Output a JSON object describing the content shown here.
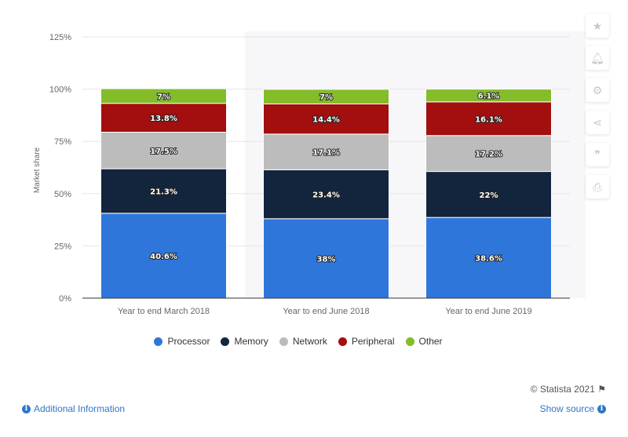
{
  "chart_data": {
    "type": "bar",
    "stacked": true,
    "categories": [
      "Year to end March 2018",
      "Year to end June 2018",
      "Year to end June 2019"
    ],
    "series": [
      {
        "name": "Processor",
        "color": "#2f76db",
        "values": [
          40.6,
          38,
          38.6
        ],
        "labels": [
          "40.6%",
          "38%",
          "38.6%"
        ]
      },
      {
        "name": "Memory",
        "color": "#13253c",
        "values": [
          21.3,
          23.4,
          22
        ],
        "labels": [
          "21.3%",
          "23.4%",
          "22%"
        ]
      },
      {
        "name": "Network",
        "color": "#bcbcbc",
        "values": [
          17.5,
          17.1,
          17.2
        ],
        "labels": [
          "17.5%",
          "17.1%",
          "17.2%"
        ]
      },
      {
        "name": "Peripheral",
        "color": "#a30e0e",
        "values": [
          13.8,
          14.4,
          16.1
        ],
        "labels": [
          "13.8%",
          "14.4%",
          "16.1%"
        ]
      },
      {
        "name": "Other",
        "color": "#84bc2a",
        "values": [
          7,
          7,
          6.1
        ],
        "labels": [
          "7%",
          "7%",
          "6.1%"
        ]
      }
    ],
    "yticks": [
      "0%",
      "25%",
      "50%",
      "75%",
      "100%",
      "125%"
    ],
    "ylim": [
      0,
      125
    ],
    "ylabel": "Market share",
    "xlabel": "",
    "grid": true,
    "legend": "bottom-center"
  },
  "credit": "© Statista 2021",
  "footer": {
    "additional_info": "Additional Information",
    "show_source": "Show source"
  },
  "sidebar_icons": [
    "star-icon",
    "bell-icon",
    "gear-icon",
    "share-icon",
    "quote-icon",
    "print-icon"
  ]
}
